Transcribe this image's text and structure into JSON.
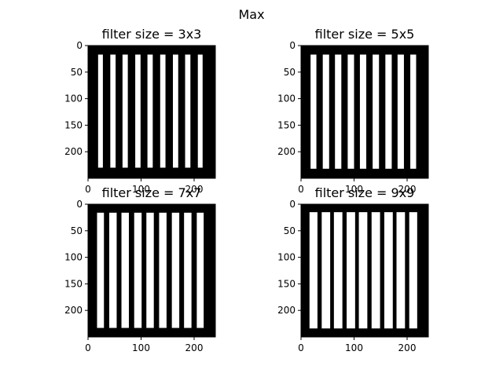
{
  "figure": {
    "title": "Max"
  },
  "chart_data": [
    {
      "type": "image",
      "title": "filter size = 3x3",
      "image_width": 240,
      "image_height": 250,
      "xlim": [
        0,
        240
      ],
      "ylim": [
        250,
        0
      ],
      "xticks": [
        0,
        100,
        200
      ],
      "yticks": [
        0,
        50,
        100,
        150,
        200
      ],
      "background": "#000000",
      "stripe_color": "#ffffff",
      "stripe_y_range": [
        17,
        230
      ],
      "stripes_x": [
        [
          19,
          28
        ],
        [
          42,
          52
        ],
        [
          65,
          75
        ],
        [
          89,
          99
        ],
        [
          112,
          122
        ],
        [
          136,
          146
        ],
        [
          160,
          170
        ],
        [
          183,
          193
        ],
        [
          207,
          216
        ]
      ]
    },
    {
      "type": "image",
      "title": "filter size = 5x5",
      "image_width": 240,
      "image_height": 250,
      "xlim": [
        0,
        240
      ],
      "ylim": [
        250,
        0
      ],
      "xticks": [
        0,
        100,
        200
      ],
      "yticks": [
        0,
        50,
        100,
        150,
        200
      ],
      "background": "#000000",
      "stripe_color": "#ffffff",
      "stripe_y_range": [
        17,
        232
      ],
      "stripes_x": [
        [
          18,
          29
        ],
        [
          41,
          53
        ],
        [
          64,
          76
        ],
        [
          88,
          100
        ],
        [
          111,
          123
        ],
        [
          135,
          147
        ],
        [
          159,
          171
        ],
        [
          182,
          194
        ],
        [
          206,
          217
        ]
      ]
    },
    {
      "type": "image",
      "title": "filter size = 7x7",
      "image_width": 240,
      "image_height": 250,
      "xlim": [
        0,
        240
      ],
      "ylim": [
        250,
        0
      ],
      "xticks": [
        0,
        100,
        200
      ],
      "yticks": [
        0,
        50,
        100,
        150,
        200
      ],
      "background": "#000000",
      "stripe_color": "#ffffff",
      "stripe_y_range": [
        16,
        233
      ],
      "stripes_x": [
        [
          17,
          30
        ],
        [
          40,
          54
        ],
        [
          63,
          77
        ],
        [
          87,
          101
        ],
        [
          110,
          124
        ],
        [
          134,
          148
        ],
        [
          158,
          172
        ],
        [
          181,
          195
        ],
        [
          205,
          218
        ]
      ]
    },
    {
      "type": "image",
      "title": "filter size = 9x9",
      "image_width": 240,
      "image_height": 250,
      "xlim": [
        0,
        240
      ],
      "ylim": [
        250,
        0
      ],
      "xticks": [
        0,
        100,
        200
      ],
      "yticks": [
        0,
        50,
        100,
        150,
        200
      ],
      "background": "#000000",
      "stripe_color": "#ffffff",
      "stripe_y_range": [
        15,
        234
      ],
      "stripes_x": [
        [
          16,
          31
        ],
        [
          39,
          55
        ],
        [
          62,
          78
        ],
        [
          86,
          102
        ],
        [
          109,
          125
        ],
        [
          133,
          149
        ],
        [
          157,
          173
        ],
        [
          180,
          196
        ],
        [
          204,
          219
        ]
      ]
    }
  ]
}
